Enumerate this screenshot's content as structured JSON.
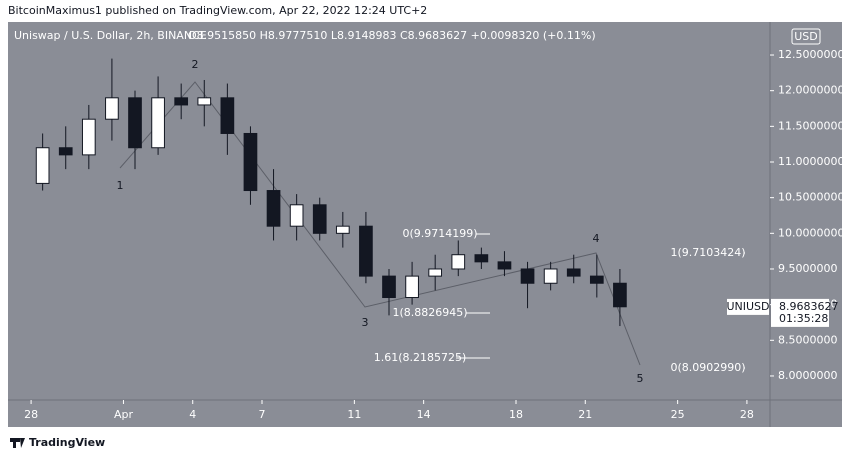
{
  "chart_data": {
    "type": "candlestick",
    "header": "BitcoinMaximus1 published on TradingView.com, Apr 22, 2022 12:24 UTC+2",
    "title": "Uniswap / U.S. Dollar, 2h, BINANCE",
    "ohlc_text": "O8.9515850 H8.9777510 L8.9148983 C8.9683627 +0.0098320 (+0.11%)",
    "currency": "USD",
    "symbol": "UNIUSD",
    "last_price": 8.9683627,
    "countdown": "01:35:28",
    "footer": "TradingView",
    "x": [
      "Mar 28",
      "Mar 29",
      "Mar 30",
      "Mar 31",
      "Apr 1",
      "Apr 2",
      "Apr 3",
      "Apr 4",
      "Apr 5",
      "Apr 6",
      "Apr 7",
      "Apr 8",
      "Apr 9",
      "Apr 10",
      "Apr 11",
      "Apr 12",
      "Apr 13",
      "Apr 14",
      "Apr 15",
      "Apr 16",
      "Apr 17",
      "Apr 18",
      "Apr 19",
      "Apr 20",
      "Apr 21",
      "Apr 22"
    ],
    "open": [
      10.7,
      11.2,
      11.1,
      11.6,
      11.9,
      11.2,
      11.9,
      11.8,
      11.9,
      11.4,
      10.6,
      10.1,
      10.4,
      10.0,
      10.1,
      9.4,
      9.1,
      9.4,
      9.5,
      9.7,
      9.6,
      9.5,
      9.3,
      9.5,
      9.4,
      9.3
    ],
    "high": [
      11.4,
      11.5,
      11.8,
      12.45,
      12.0,
      12.2,
      12.1,
      12.15,
      12.1,
      11.5,
      10.9,
      10.55,
      10.5,
      10.3,
      10.3,
      9.5,
      9.6,
      9.7,
      9.9,
      9.8,
      9.75,
      9.6,
      9.6,
      9.7,
      9.7,
      9.5
    ],
    "low": [
      10.6,
      10.9,
      10.9,
      11.3,
      10.9,
      11.1,
      11.6,
      11.5,
      11.1,
      10.4,
      9.9,
      9.9,
      9.9,
      9.8,
      9.3,
      8.85,
      9.0,
      9.2,
      9.4,
      9.5,
      9.4,
      8.95,
      9.2,
      9.3,
      9.1,
      8.7
    ],
    "close": [
      11.2,
      11.1,
      11.6,
      11.9,
      11.2,
      11.9,
      11.8,
      11.9,
      11.4,
      10.6,
      10.1,
      10.4,
      10.0,
      10.1,
      9.4,
      9.1,
      9.4,
      9.5,
      9.7,
      9.6,
      9.5,
      9.3,
      9.5,
      9.4,
      9.3,
      8.97
    ],
    "up_color": "#ffffff",
    "down_color": "#131722",
    "background": "#8a8d96",
    "xlim": [
      "Mar 27",
      "Apr 29"
    ],
    "xticks": [
      {
        "value": "Mar 28",
        "label": "28"
      },
      {
        "value": "Apr 1",
        "label": "Apr"
      },
      {
        "value": "Apr 4",
        "label": "4"
      },
      {
        "value": "Apr 7",
        "label": "7"
      },
      {
        "value": "Apr 11",
        "label": "11"
      },
      {
        "value": "Apr 14",
        "label": "14"
      },
      {
        "value": "Apr 18",
        "label": "18"
      },
      {
        "value": "Apr 21",
        "label": "21"
      },
      {
        "value": "Apr 25",
        "label": "25"
      },
      {
        "value": "Apr 28",
        "label": "28"
      }
    ],
    "ylim": [
      7.663,
      12.963
    ],
    "yticks": [
      {
        "value": 8,
        "label": "8.0000000"
      },
      {
        "value": 8.5,
        "label": "8.5000000"
      },
      {
        "value": 9,
        "label": "9.0000000"
      },
      {
        "value": 9.5,
        "label": "9.5000000"
      },
      {
        "value": 10,
        "label": "10.0000000"
      },
      {
        "value": 10.5,
        "label": "10.5000000"
      },
      {
        "value": 11,
        "label": "11.0000000"
      },
      {
        "value": 11.5,
        "label": "11.5000000"
      },
      {
        "value": 12,
        "label": "12.0000000"
      },
      {
        "value": 12.5,
        "label": "12.5000000"
      }
    ],
    "annotations": [
      "1",
      "2",
      "3",
      "4",
      "5",
      "0(9.9714199)",
      "1(8.8826945)",
      "1.61(8.2185725)",
      "1(9.7103424)",
      "0(8.0902990)"
    ]
  }
}
